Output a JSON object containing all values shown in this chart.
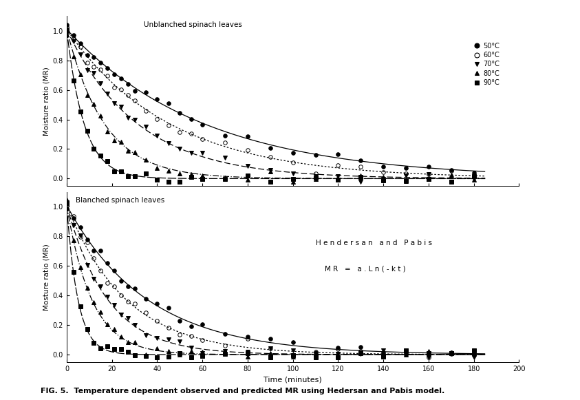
{
  "title": "FIG. 5.  Temperature dependent observed and predicted MR using Hedersan and Pabis model.",
  "subplot1_label": "Unblanched spinach leaves",
  "subplot2_label": "Blanched spinach leaves",
  "subplot2_text1": "H e n d e r s a n   a n d   P a b i s",
  "subplot2_text2": "M R   =   a . L n ( - k t )",
  "xlabel": "Time (minutes)",
  "ylabel1": "Moisture ratio (MR)",
  "ylabel2": "Mosture ratio (MR)",
  "xlim": [
    0,
    200
  ],
  "ylim": [
    -0.05,
    1.1
  ],
  "xticks": [
    0,
    20,
    40,
    60,
    80,
    100,
    120,
    140,
    160,
    180,
    200
  ],
  "yticks": [
    0.0,
    0.2,
    0.4,
    0.6,
    0.8,
    1.0
  ],
  "legend_labels": [
    "50°C",
    "60°C",
    "70°C",
    "80°C",
    "90°C"
  ],
  "k_unblanched": [
    0.0165,
    0.022,
    0.032,
    0.06,
    0.13
  ],
  "k_blanched": [
    0.028,
    0.038,
    0.055,
    0.09,
    0.2
  ],
  "a_val": 1.01,
  "markers": [
    "o",
    "o",
    "v",
    "^",
    "s"
  ],
  "fillstyles": [
    "full",
    "none",
    "full",
    "full",
    "full"
  ],
  "markersize": 4.0,
  "bg_color": "#ffffff"
}
